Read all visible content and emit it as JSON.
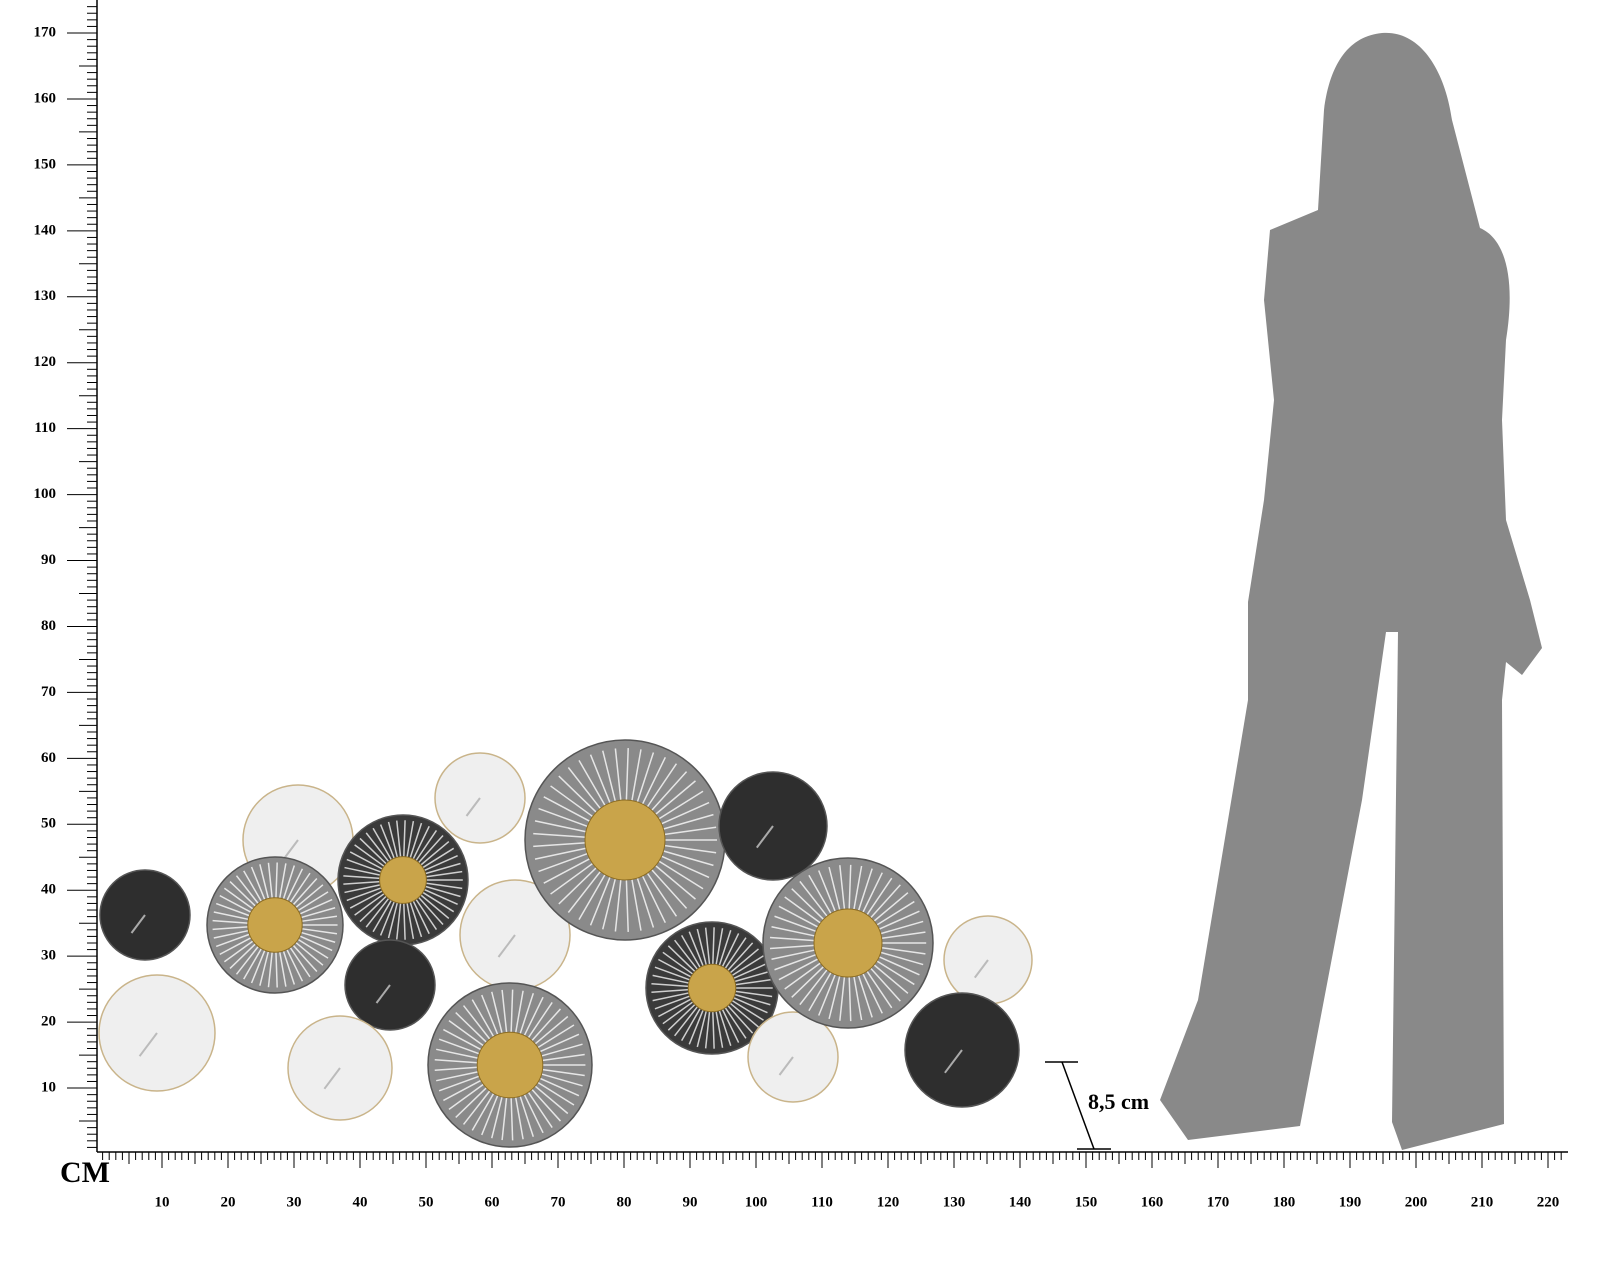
{
  "unit": "CM",
  "horizontal_ruler": {
    "labels": [
      10,
      20,
      30,
      40,
      50,
      60,
      70,
      80,
      90,
      100,
      110,
      120,
      130,
      140,
      150,
      160,
      170,
      180,
      190,
      200,
      210,
      220
    ]
  },
  "vertical_ruler": {
    "labels": [
      10,
      20,
      30,
      40,
      50,
      60,
      70,
      80,
      90,
      100,
      110,
      120,
      130,
      140,
      150,
      160,
      170
    ]
  },
  "depth_annotation": "8,5 cm"
}
